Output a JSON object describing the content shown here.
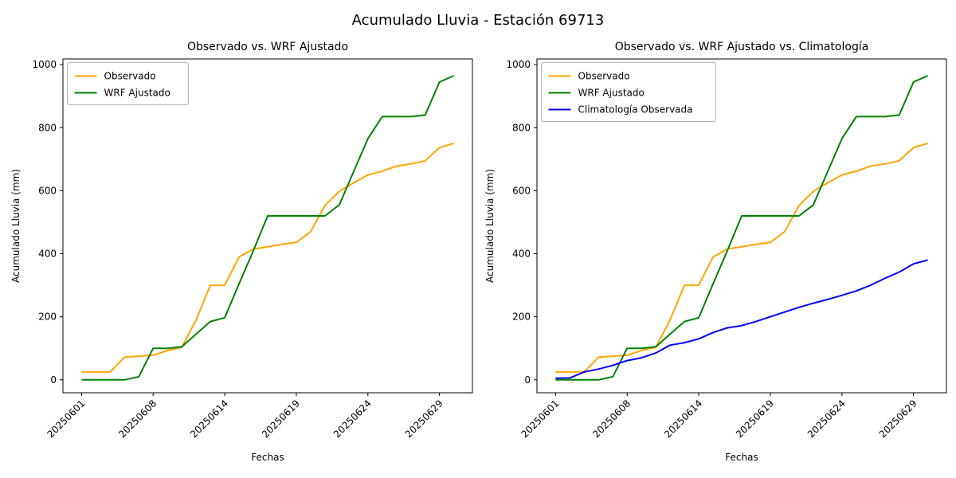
{
  "figure": {
    "title": "Acumulado Lluvia - Estación 69713"
  },
  "colors": {
    "observado": "#FFA500",
    "wrf_ajustado": "#008000",
    "climatologia": "#0000FF",
    "spine": "#000000",
    "legend_border": "#b3b3b3"
  },
  "chart_data": [
    {
      "type": "line",
      "title": "Observado vs. WRF Ajustado",
      "xlabel": "Fechas",
      "ylabel": "Acumulado Lluvia (mm)",
      "grid": false,
      "legend_position": "upper left",
      "xlim": [
        -1.3,
        27.3
      ],
      "ylim": [
        -41,
        1018
      ],
      "yticks": [
        0,
        200,
        400,
        600,
        800,
        1000
      ],
      "xtick_indices": [
        0,
        5,
        10,
        15,
        20,
        25
      ],
      "xtick_labels": [
        "20250601",
        "20250608",
        "20250614",
        "20250619",
        "20250624",
        "20250629"
      ],
      "x_dates": [
        "20250601",
        "20250604",
        "20250605",
        "20250606",
        "20250607",
        "20250608",
        "20250610",
        "20250611",
        "20250612",
        "20250613",
        "20250614",
        "20250615",
        "20250616",
        "20250617",
        "20250618",
        "20250619",
        "20250620",
        "20250621",
        "20250622",
        "20250623",
        "20250624",
        "20250625",
        "20250626",
        "20250627",
        "20250628",
        "20250629",
        "20250630"
      ],
      "series": [
        {
          "name": "Observado",
          "color": "#FFA500",
          "values": [
            25,
            25,
            25,
            72,
            75,
            78,
            93,
            103,
            190,
            300,
            300,
            390,
            415,
            422,
            430,
            436,
            470,
            553,
            598,
            625,
            650,
            662,
            678,
            685,
            695,
            737,
            750
          ]
        },
        {
          "name": "WRF Ajustado",
          "color": "#008000",
          "values": [
            0,
            0,
            0,
            0,
            10,
            100,
            100,
            105,
            145,
            185,
            197,
            305,
            410,
            520,
            520,
            520,
            520,
            520,
            555,
            660,
            765,
            835,
            835,
            835,
            840,
            945,
            965
          ]
        }
      ]
    },
    {
      "type": "line",
      "title": "Observado vs. WRF Ajustado vs. Climatología",
      "xlabel": "Fechas",
      "ylabel": "Acumulado Lluvia (mm)",
      "grid": false,
      "legend_position": "upper left",
      "xlim": [
        -1.3,
        27.3
      ],
      "ylim": [
        -41,
        1018
      ],
      "yticks": [
        0,
        200,
        400,
        600,
        800,
        1000
      ],
      "xtick_indices": [
        0,
        5,
        10,
        15,
        20,
        25
      ],
      "xtick_labels": [
        "20250601",
        "20250608",
        "20250614",
        "20250619",
        "20250624",
        "20250629"
      ],
      "x_dates": [
        "20250601",
        "20250604",
        "20250605",
        "20250606",
        "20250607",
        "20250608",
        "20250610",
        "20250611",
        "20250612",
        "20250613",
        "20250614",
        "20250615",
        "20250616",
        "20250617",
        "20250618",
        "20250619",
        "20250620",
        "20250621",
        "20250622",
        "20250623",
        "20250624",
        "20250625",
        "20250626",
        "20250627",
        "20250628",
        "20250629",
        "20250630"
      ],
      "series": [
        {
          "name": "Observado",
          "color": "#FFA500",
          "values": [
            25,
            25,
            25,
            72,
            75,
            78,
            93,
            103,
            190,
            300,
            300,
            390,
            415,
            422,
            430,
            436,
            470,
            553,
            598,
            625,
            650,
            662,
            678,
            685,
            695,
            737,
            750
          ]
        },
        {
          "name": "WRF Ajustado",
          "color": "#008000",
          "values": [
            0,
            0,
            0,
            0,
            10,
            100,
            100,
            105,
            145,
            185,
            197,
            305,
            410,
            520,
            520,
            520,
            520,
            520,
            555,
            660,
            765,
            835,
            835,
            835,
            840,
            945,
            965
          ]
        },
        {
          "name": "Climatología Observada",
          "color": "#0000FF",
          "values": [
            5,
            6,
            25,
            34,
            46,
            61,
            70,
            85,
            110,
            118,
            130,
            150,
            165,
            172,
            185,
            200,
            215,
            230,
            243,
            255,
            268,
            282,
            300,
            322,
            342,
            368,
            380
          ]
        }
      ]
    }
  ]
}
